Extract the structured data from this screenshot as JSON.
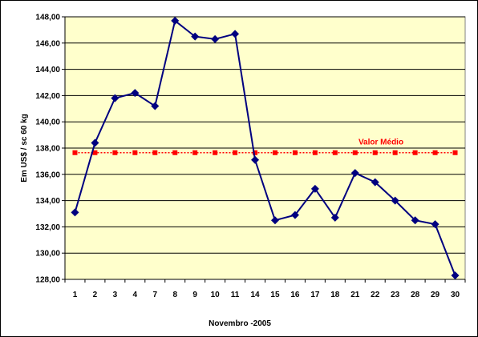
{
  "chart_data": {
    "type": "line",
    "categories": [
      "1",
      "2",
      "3",
      "4",
      "7",
      "8",
      "9",
      "10",
      "11",
      "14",
      "15",
      "16",
      "17",
      "18",
      "21",
      "22",
      "23",
      "28",
      "29",
      "30"
    ],
    "series": [
      {
        "values": [
          133.1,
          138.4,
          141.8,
          142.2,
          141.2,
          147.7,
          146.5,
          146.3,
          146.7,
          137.1,
          132.5,
          132.9,
          134.9,
          132.7,
          136.1,
          135.4,
          134.0,
          132.5,
          132.2,
          128.3
        ],
        "color": "#000080",
        "marker": "diamond"
      },
      {
        "name": "Valor Médio",
        "value": 137.65,
        "color": "#ff0000",
        "marker": "square",
        "style": "dotted"
      }
    ],
    "y_ticks": [
      "128,00",
      "130,00",
      "132,00",
      "134,00",
      "136,00",
      "138,00",
      "140,00",
      "142,00",
      "144,00",
      "146,00",
      "148,00"
    ],
    "ylim": [
      128,
      148
    ],
    "xlabel": "Novembro -2005",
    "ylabel": "Em US$ / sc 60 kg",
    "annotation": "Valor Médio",
    "plot_background": "#ffffcc",
    "grid": "horizontal"
  }
}
